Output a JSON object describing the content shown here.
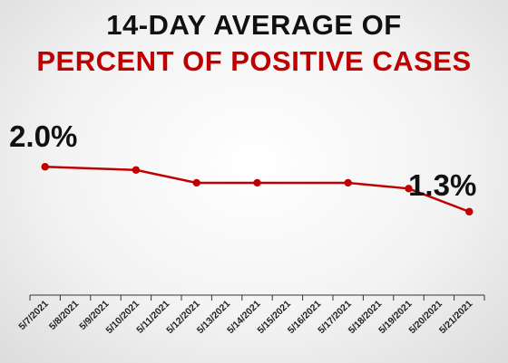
{
  "title_line1": "14-DAY AVERAGE OF",
  "title_line2": "PERCENT OF POSITIVE CASES",
  "colors": {
    "line": "#c00000",
    "title_accent": "#c00000",
    "axis": "#333333"
  },
  "chart_data": {
    "type": "line",
    "categories": [
      "5/7/2021",
      "5/8/2021",
      "5/9/2021",
      "5/10/2021",
      "5/11/2021",
      "5/12/2021",
      "5/13/2021",
      "5/14/2021",
      "5/15/2021",
      "5/16/2021",
      "5/17/2021",
      "5/18/2021",
      "5/19/2021",
      "5/20/2021",
      "5/21/2021"
    ],
    "series": [
      {
        "points": [
          {
            "x": "5/7/2021",
            "y": 2.0
          },
          {
            "x": "5/10/2021",
            "y": 1.95
          },
          {
            "x": "5/12/2021",
            "y": 1.75
          },
          {
            "x": "5/14/2021",
            "y": 1.75
          },
          {
            "x": "5/17/2021",
            "y": 1.75
          },
          {
            "x": "5/19/2021",
            "y": 1.66
          },
          {
            "x": "5/21/2021",
            "y": 1.3
          }
        ]
      }
    ],
    "data_labels": [
      {
        "x": "5/7/2021",
        "text": "2.0%"
      },
      {
        "x": "5/21/2021",
        "text": "1.3%"
      }
    ],
    "ylim": [
      0,
      3.4
    ],
    "grid": false,
    "y_axis_visible": false
  }
}
